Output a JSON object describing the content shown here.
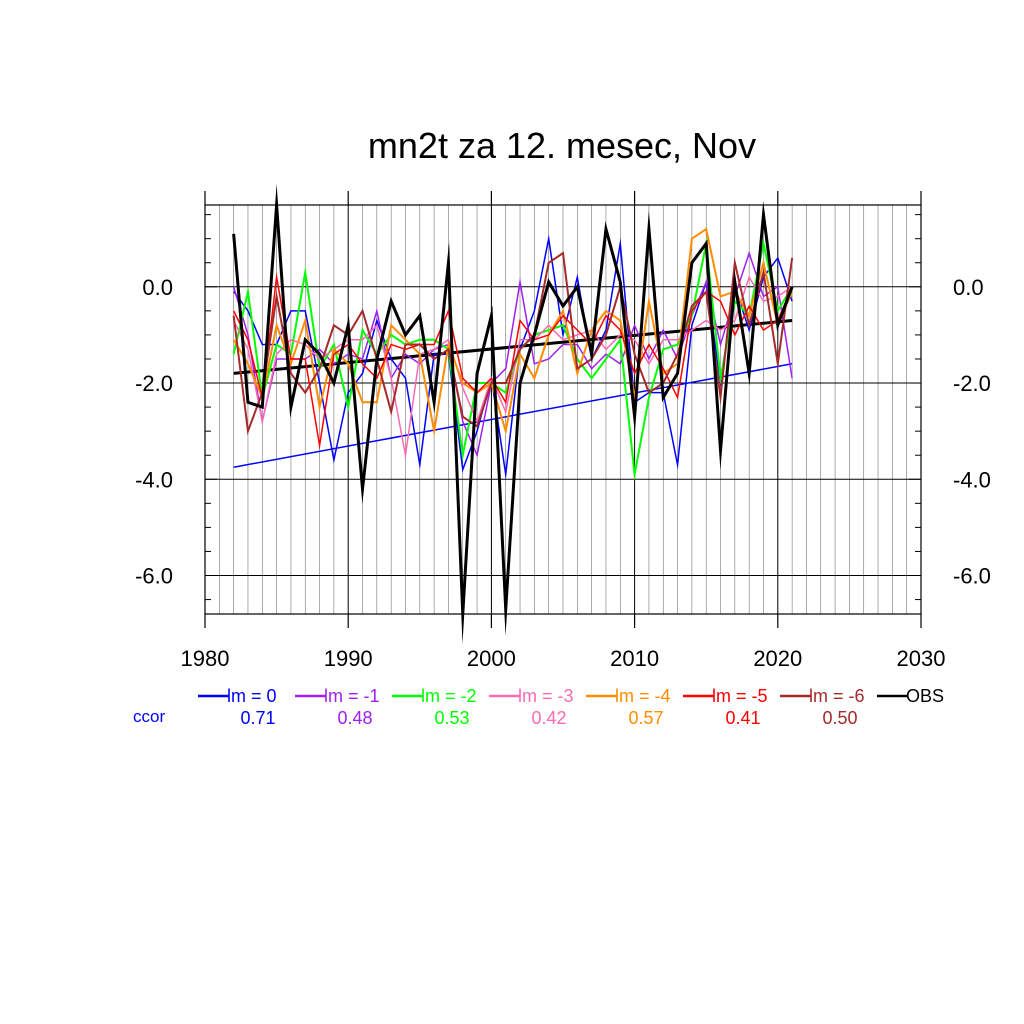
{
  "chart_data": {
    "type": "line",
    "title": "mn2t za 12. mesec, Nov",
    "xlabel": "",
    "ylabel": "",
    "xlim": [
      1980,
      2030
    ],
    "ylim": [
      -6.8,
      1.7
    ],
    "x_ticks": [
      "1980",
      "1990",
      "2000",
      "2010",
      "2020",
      "2030"
    ],
    "y_ticks": [
      "0.0",
      "-2.0",
      "-4.0",
      "-6.0"
    ],
    "grid": true,
    "years": [
      1982,
      1983,
      1984,
      1985,
      1986,
      1987,
      1988,
      1989,
      1990,
      1991,
      1992,
      1993,
      1994,
      1995,
      1996,
      1997,
      1998,
      1999,
      2000,
      2001,
      2002,
      2003,
      2004,
      2005,
      2006,
      2007,
      2008,
      2009,
      2010,
      2011,
      2012,
      2013,
      2014,
      2015,
      2016,
      2017,
      2018,
      2019,
      2020,
      2021
    ],
    "series": [
      {
        "name": "lm = 0",
        "color": "#0000ff",
        "width": 1.5,
        "values": [
          -0.1,
          -0.5,
          -1.2,
          -1.2,
          -0.5,
          -0.5,
          -2.0,
          -3.6,
          -2.2,
          -1.8,
          -0.7,
          -1.5,
          -1.9,
          -3.7,
          -1.4,
          -1.4,
          -3.8,
          -3.0,
          -1.9,
          -3.9,
          -1.3,
          -0.5,
          1.0,
          -1.0,
          0.2,
          -1.5,
          -0.9,
          0.9,
          -2.4,
          -2.2,
          -2.2,
          -3.7,
          -0.8,
          0.1,
          -2.0,
          0.0,
          -0.9,
          0.2,
          0.6,
          -0.3
        ],
        "trend": [
          -3.75,
          -1.6
        ]
      },
      {
        "name": "lm = -1",
        "color": "#a020f0",
        "width": 1.5,
        "values": [
          0.0,
          -1.0,
          -2.8,
          -1.5,
          -1.5,
          -1.5,
          -1.3,
          -1.6,
          -1.4,
          -1.5,
          -0.5,
          -1.9,
          -1.4,
          -1.6,
          -1.3,
          -1.2,
          -2.8,
          -3.5,
          -2.0,
          -1.7,
          0.1,
          -1.6,
          -1.5,
          -1.2,
          -1.2,
          -1.7,
          -1.4,
          -1.6,
          -0.8,
          -1.5,
          -0.9,
          -1.5,
          -0.6,
          0.1,
          -1.2,
          -0.2,
          0.7,
          -0.2,
          0.0,
          -1.9
        ]
      },
      {
        "name": "lm = -2",
        "color": "#00ff00",
        "width": 2,
        "values": [
          -1.4,
          -0.1,
          -2.3,
          -1.2,
          -1.4,
          0.3,
          -1.7,
          -1.2,
          -2.5,
          -0.9,
          -1.4,
          -1.0,
          -1.2,
          -1.1,
          -1.1,
          -1.3,
          -3.5,
          -2.0,
          -2.0,
          -2.2,
          -1.3,
          -1.0,
          -0.9,
          -0.8,
          -1.5,
          -1.9,
          -1.5,
          -1.1,
          -3.9,
          -2.3,
          -1.3,
          -1.2,
          -0.6,
          0.9,
          -1.9,
          -0.3,
          -0.6,
          0.9,
          -0.5,
          0.0
        ]
      },
      {
        "name": "lm = -3",
        "color": "#ff69b4",
        "width": 1.5,
        "values": [
          -0.7,
          -1.3,
          -2.8,
          -1.4,
          -1.1,
          -1.2,
          -1.5,
          -1.3,
          -1.1,
          -1.1,
          -0.8,
          -1.9,
          -3.5,
          -1.4,
          -1.3,
          -1.1,
          -2.1,
          -2.8,
          -1.9,
          -2.6,
          -1.1,
          -1.1,
          -0.8,
          -1.1,
          -1.0,
          -0.9,
          -1.3,
          -1.0,
          -1.1,
          -1.6,
          -1.1,
          -1.1,
          -0.9,
          -0.7,
          -0.9,
          -0.7,
          0.2,
          -0.3,
          -0.2,
          0.0
        ]
      },
      {
        "name": "lm = -4",
        "color": "#ff8c00",
        "width": 2,
        "values": [
          -1.1,
          -1.6,
          -2.3,
          -0.8,
          -1.6,
          -0.7,
          -2.5,
          -1.3,
          -1.6,
          -2.4,
          -2.4,
          -0.8,
          -1.1,
          -1.4,
          -3.0,
          -1.2,
          -2.0,
          -2.2,
          -2.0,
          -3.0,
          -1.4,
          -1.9,
          -1.0,
          -0.5,
          -1.8,
          -0.9,
          -0.5,
          -0.7,
          -2.3,
          -0.3,
          -1.8,
          -1.6,
          1.0,
          1.2,
          -0.2,
          -0.1,
          -0.6,
          0.5,
          -0.8,
          -0.1
        ]
      },
      {
        "name": "lm = -5",
        "color": "#ff0000",
        "width": 1.5,
        "values": [
          -0.5,
          -1.1,
          -2.3,
          0.2,
          -1.5,
          -1.5,
          -3.3,
          -1.4,
          -1.2,
          -1.6,
          -1.9,
          -1.2,
          -1.3,
          -1.2,
          -1.2,
          -0.5,
          -1.9,
          -2.2,
          -1.9,
          -2.4,
          -0.7,
          -1.1,
          -1.0,
          -0.6,
          -0.9,
          -1.2,
          -0.6,
          -0.9,
          -1.8,
          -1.2,
          -1.7,
          -2.3,
          -0.5,
          -0.1,
          -0.3,
          -1.0,
          -0.4,
          -0.9,
          -0.7,
          0.0
        ]
      },
      {
        "name": "lm = -6",
        "color": "#a52a2a",
        "width": 2,
        "values": [
          -0.6,
          -3.0,
          -2.2,
          -0.2,
          -1.8,
          -2.2,
          -1.7,
          -0.8,
          -1.0,
          -0.5,
          -1.5,
          -2.6,
          -1.2,
          -1.2,
          -1.5,
          -1.3,
          -2.7,
          -2.9,
          -2.0,
          -2.0,
          -1.3,
          -1.0,
          0.5,
          0.7,
          -1.7,
          -1.5,
          -1.0,
          0.0,
          -1.4,
          -2.2,
          -2.0,
          -1.4,
          -0.4,
          -0.1,
          -2.3,
          0.5,
          -0.8,
          0.3,
          -1.6,
          0.6
        ]
      },
      {
        "name": "OBS",
        "color": "#000000",
        "width": 3,
        "values": [
          1.1,
          -2.4,
          -2.5,
          1.7,
          -2.5,
          -1.1,
          -1.4,
          -2.0,
          -0.8,
          -4.2,
          -1.5,
          -0.3,
          -1.0,
          -0.6,
          -2.4,
          0.5,
          -6.8,
          -1.8,
          -0.6,
          -6.7,
          -2.0,
          -1.0,
          0.1,
          -0.4,
          0.0,
          -1.4,
          1.2,
          0.1,
          -2.7,
          1.2,
          -2.3,
          -1.8,
          0.5,
          0.9,
          -3.4,
          0.1,
          -1.8,
          1.5,
          -0.8,
          0.0
        ],
        "trend": [
          -1.8,
          -0.7
        ]
      }
    ],
    "legend": {
      "placement": "bottom",
      "ccor_label": "ccor",
      "ccor_label_color": "#0000ff",
      "entries": [
        {
          "label": "lm = 0",
          "color": "#0000ff",
          "ccor": "0.71"
        },
        {
          "label": "lm = -1",
          "color": "#a020f0",
          "ccor": "0.48"
        },
        {
          "label": "lm = -2",
          "color": "#00ff00",
          "ccor": "0.53"
        },
        {
          "label": "lm = -3",
          "color": "#ff69b4",
          "ccor": "0.42"
        },
        {
          "label": "lm = -4",
          "color": "#ff8c00",
          "ccor": "0.57"
        },
        {
          "label": "lm = -5",
          "color": "#ff0000",
          "ccor": "0.41"
        },
        {
          "label": "lm = -6",
          "color": "#a52a2a",
          "ccor": "0.50"
        },
        {
          "label": "OBS",
          "color": "#000000",
          "ccor": ""
        }
      ]
    }
  }
}
